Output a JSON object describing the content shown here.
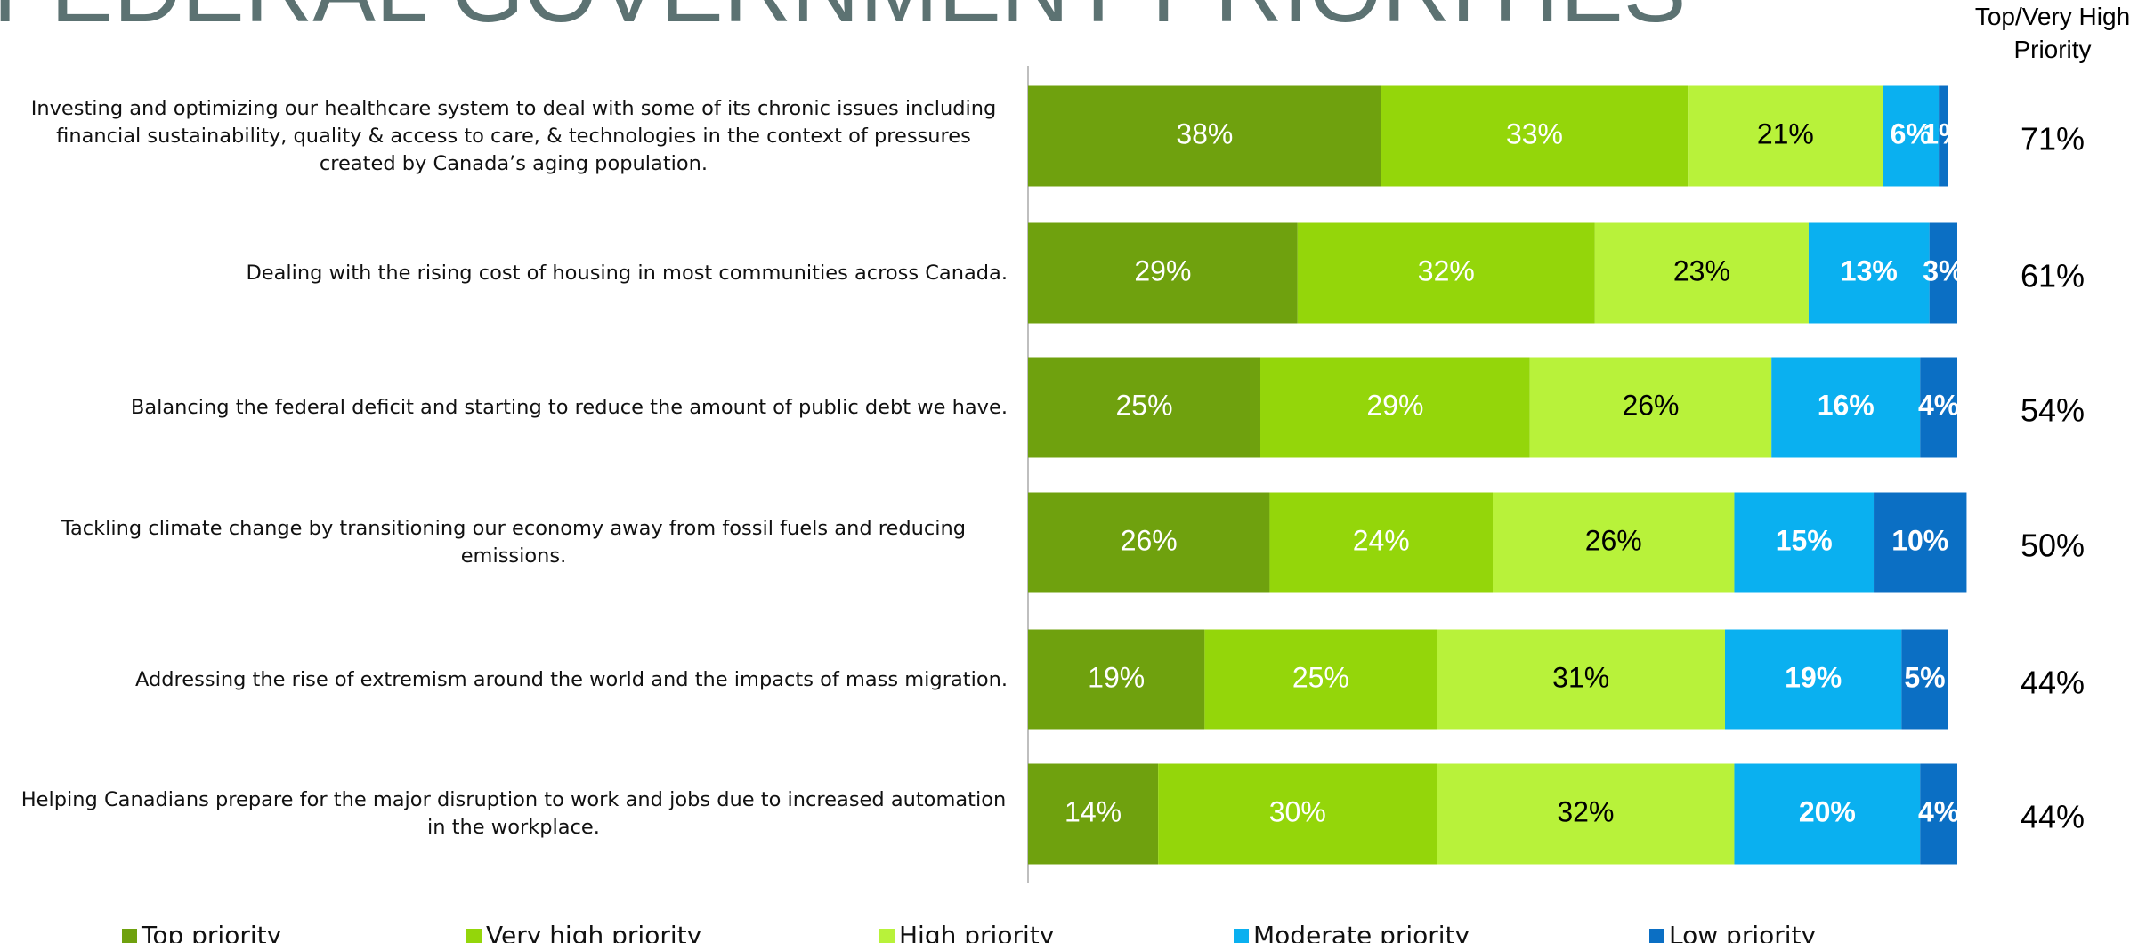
{
  "chart_data": {
    "type": "stacked-bar",
    "title": "FEDERAL GOVERNMENT PRIORITIES",
    "categories": [
      "Investing and optimizing our healthcare system to deal with some of its chronic issues including financial sustainability, quality & access to care, & technologies in the context of pressures created by Canada’s aging population.",
      "Dealing with the rising cost of housing in most communities across Canada.",
      "Balancing the federal deficit and starting to reduce the amount of public debt we have.",
      "Tackling climate change by transitioning our economy away from fossil fuels and reducing emissions.",
      "Addressing the rise of extremism around the world and the impacts of mass migration.",
      "Helping Canadians prepare for the major disruption to work and jobs due to increased automation in the workplace."
    ],
    "xlim": [
      0,
      100
    ],
    "series": [
      {
        "name": "Top priority",
        "color": "#6fa10e",
        "label_color": "#ffffff",
        "values": [
          38,
          29,
          25,
          26,
          19,
          14
        ],
        "value_labels": [
          "38%",
          "29%",
          "25%",
          "26%",
          "19%",
          "14%"
        ]
      },
      {
        "name": "Very high priority",
        "color": "#94d60a",
        "label_color": "#ffffff",
        "values": [
          33,
          32,
          29,
          24,
          25,
          30
        ],
        "value_labels": [
          "33%",
          "32%",
          "29%",
          "24%",
          "25%",
          "30%"
        ]
      },
      {
        "name": "High priority",
        "color": "#b8f23a",
        "label_color": "#000000",
        "values": [
          21,
          23,
          26,
          26,
          31,
          32
        ],
        "value_labels": [
          "21%",
          "23%",
          "26%",
          "26%",
          "31%",
          "32%"
        ]
      },
      {
        "name": "Moderate priority",
        "color": "#0ab0f0",
        "label_color": "#ffffff",
        "values": [
          6,
          13,
          16,
          15,
          19,
          20
        ],
        "value_labels": [
          "6%",
          "13%",
          "16%",
          "15%",
          "19%",
          "20%"
        ]
      },
      {
        "name": "Low priority",
        "color": "#0b6fc4",
        "label_color": "#ffffff",
        "values": [
          1,
          3,
          4,
          10,
          5,
          4
        ],
        "value_labels": [
          "1%",
          "3%",
          "4%",
          "10%",
          "5%",
          "4%"
        ]
      }
    ],
    "summary": {
      "title": "Top/Very High Priority",
      "values": [
        71,
        61,
        54,
        50,
        44,
        44
      ],
      "value_labels": [
        "71%",
        "61%",
        "54%",
        "50%",
        "44%",
        "44%"
      ]
    }
  }
}
